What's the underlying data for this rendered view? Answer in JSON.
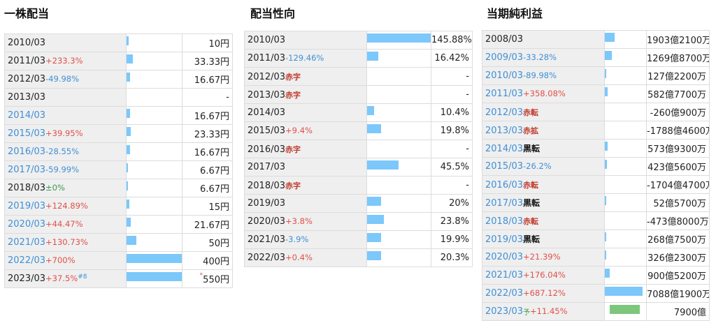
{
  "panels": [
    {
      "id": "p1",
      "title": "一株配当",
      "bar_max": 550,
      "rows": [
        {
          "year": "2010/03",
          "link": false,
          "change": "",
          "change_type": "",
          "value": "10円",
          "bar": 10,
          "sup": "",
          "ast": ""
        },
        {
          "year": "2011/03",
          "link": false,
          "change": "+233.3%",
          "change_type": "pl",
          "value": "33.33円",
          "bar": 33.33,
          "sup": "",
          "ast": ""
        },
        {
          "year": "2012/03",
          "link": false,
          "change": "-49.98%",
          "change_type": "mi",
          "value": "16.67円",
          "bar": 16.67,
          "sup": "",
          "ast": ""
        },
        {
          "year": "2013/03",
          "link": false,
          "change": "",
          "change_type": "",
          "value": "-",
          "bar": 0,
          "sup": "",
          "ast": ""
        },
        {
          "year": "2014/03",
          "link": true,
          "change": "",
          "change_type": "",
          "value": "16.67円",
          "bar": 16.67,
          "sup": "",
          "ast": ""
        },
        {
          "year": "2015/03",
          "link": true,
          "change": "+39.95%",
          "change_type": "pl",
          "value": "23.33円",
          "bar": 23.33,
          "sup": "",
          "ast": ""
        },
        {
          "year": "2016/03",
          "link": true,
          "change": "-28.55%",
          "change_type": "mi",
          "value": "16.67円",
          "bar": 16.67,
          "sup": "",
          "ast": ""
        },
        {
          "year": "2017/03",
          "link": true,
          "change": "-59.99%",
          "change_type": "mi",
          "value": "6.67円",
          "bar": 6.67,
          "sup": "",
          "ast": ""
        },
        {
          "year": "2018/03",
          "link": false,
          "change": "±0%",
          "change_type": "ze",
          "value": "6.67円",
          "bar": 6.67,
          "sup": "",
          "ast": ""
        },
        {
          "year": "2019/03",
          "link": true,
          "change": "+124.89%",
          "change_type": "pl",
          "value": "15円",
          "bar": 15,
          "sup": "",
          "ast": ""
        },
        {
          "year": "2020/03",
          "link": true,
          "change": "+44.47%",
          "change_type": "pl",
          "value": "21.67円",
          "bar": 21.67,
          "sup": "",
          "ast": ""
        },
        {
          "year": "2021/03",
          "link": true,
          "change": "+130.73%",
          "change_type": "pl",
          "value": "50円",
          "bar": 50,
          "sup": "",
          "ast": ""
        },
        {
          "year": "2022/03",
          "link": true,
          "change": "+700%",
          "change_type": "pl",
          "value": "400円",
          "bar": 400,
          "sup": "",
          "ast": ""
        },
        {
          "year": "2023/03",
          "link": false,
          "change": "+37.5%",
          "change_type": "pl",
          "value": "550円",
          "bar": 550,
          "sup": "#8",
          "ast": "*"
        }
      ]
    },
    {
      "id": "p2",
      "title": "配当性向",
      "bar_max": 145.88,
      "rows": [
        {
          "year": "2010/03",
          "change": "",
          "change_type": "",
          "value": "145.88%",
          "bar": 145.88
        },
        {
          "year": "2011/03",
          "change": "-129.46%",
          "change_type": "mi",
          "value": "16.42%",
          "bar": 16.42
        },
        {
          "year": "2012/03",
          "change": "赤字",
          "change_type": "red",
          "value": "-",
          "bar": 0
        },
        {
          "year": "2013/03",
          "change": "赤字",
          "change_type": "red",
          "value": "-",
          "bar": 0
        },
        {
          "year": "2014/03",
          "change": "",
          "change_type": "",
          "value": "10.4%",
          "bar": 10.4
        },
        {
          "year": "2015/03",
          "change": "+9.4%",
          "change_type": "pl",
          "value": "19.8%",
          "bar": 19.8
        },
        {
          "year": "2016/03",
          "change": "赤字",
          "change_type": "red",
          "value": "-",
          "bar": 0
        },
        {
          "year": "2017/03",
          "change": "",
          "change_type": "",
          "value": "45.5%",
          "bar": 45.5
        },
        {
          "year": "2018/03",
          "change": "赤字",
          "change_type": "red",
          "value": "-",
          "bar": 0
        },
        {
          "year": "2019/03",
          "change": "",
          "change_type": "",
          "value": "20%",
          "bar": 20
        },
        {
          "year": "2020/03",
          "change": "+3.8%",
          "change_type": "pl",
          "value": "23.8%",
          "bar": 23.8
        },
        {
          "year": "2021/03",
          "change": "-3.9%",
          "change_type": "mi",
          "value": "19.9%",
          "bar": 19.9
        },
        {
          "year": "2022/03",
          "change": "+0.4%",
          "change_type": "pl",
          "value": "20.3%",
          "bar": 20.3
        }
      ]
    },
    {
      "id": "p3",
      "title": "当期純利益",
      "bar_max": 7088,
      "rows": [
        {
          "year": "2008/03",
          "link": false,
          "yo": "",
          "change": "",
          "change_type": "",
          "value": "1903億2100万",
          "bar": 1903,
          "fc": false
        },
        {
          "year": "2009/03",
          "link": true,
          "yo": "",
          "change": "-33.28%",
          "change_type": "mi",
          "value": "1269億8700万",
          "bar": 1270,
          "fc": false
        },
        {
          "year": "2010/03",
          "link": true,
          "yo": "",
          "change": "-89.98%",
          "change_type": "mi",
          "value": "127億2200万",
          "bar": 127,
          "fc": false
        },
        {
          "year": "2011/03",
          "link": true,
          "yo": "",
          "change": "+358.08%",
          "change_type": "pl",
          "value": "582億7700万",
          "bar": 583,
          "fc": false
        },
        {
          "year": "2012/03",
          "link": true,
          "yo": "",
          "change": "赤転",
          "change_type": "red",
          "value": "-260億900万",
          "bar": 0,
          "fc": false
        },
        {
          "year": "2013/03",
          "link": true,
          "yo": "",
          "change": "赤拡",
          "change_type": "red",
          "value": "-1788億4600万",
          "bar": 0,
          "fc": false
        },
        {
          "year": "2014/03",
          "link": true,
          "yo": "",
          "change": "黒転",
          "change_type": "blk",
          "value": "573億9300万",
          "bar": 574,
          "fc": false
        },
        {
          "year": "2015/03",
          "link": true,
          "yo": "",
          "change": "-26.2%",
          "change_type": "mi",
          "value": "423億5600万",
          "bar": 424,
          "fc": false
        },
        {
          "year": "2016/03",
          "link": true,
          "yo": "",
          "change": "赤転",
          "change_type": "red",
          "value": "-1704億4700万",
          "bar": 0,
          "fc": false
        },
        {
          "year": "2017/03",
          "link": true,
          "yo": "",
          "change": "黒転",
          "change_type": "blk",
          "value": "52億5700万",
          "bar": 53,
          "fc": false
        },
        {
          "year": "2018/03",
          "link": true,
          "yo": "",
          "change": "赤転",
          "change_type": "red",
          "value": "-473億8000万",
          "bar": 0,
          "fc": false
        },
        {
          "year": "2019/03",
          "link": true,
          "yo": "",
          "change": "黒転",
          "change_type": "blk",
          "value": "268億7500万",
          "bar": 269,
          "fc": false
        },
        {
          "year": "2020/03",
          "link": true,
          "yo": "",
          "change": "+21.39%",
          "change_type": "pl",
          "value": "326億2300万",
          "bar": 326,
          "fc": false
        },
        {
          "year": "2021/03",
          "link": true,
          "yo": "",
          "change": "+176.04%",
          "change_type": "pl",
          "value": "900億5200万",
          "bar": 901,
          "fc": false
        },
        {
          "year": "2022/03",
          "link": true,
          "yo": "",
          "change": "+687.12%",
          "change_type": "pl",
          "value": "7088億1900万",
          "bar": 7088,
          "fc": false
        },
        {
          "year": "2023/03",
          "link": true,
          "yo": "予",
          "change": "+11.45%",
          "change_type": "pl",
          "value": "7900億",
          "bar": 7900,
          "fc": true
        }
      ]
    }
  ],
  "colors": {
    "bar": "#7cc8fa",
    "forecast_bar": "#7dc77c",
    "plus": "#e0504a",
    "minus": "#3f8fd6",
    "red_text": "#c0392b"
  }
}
